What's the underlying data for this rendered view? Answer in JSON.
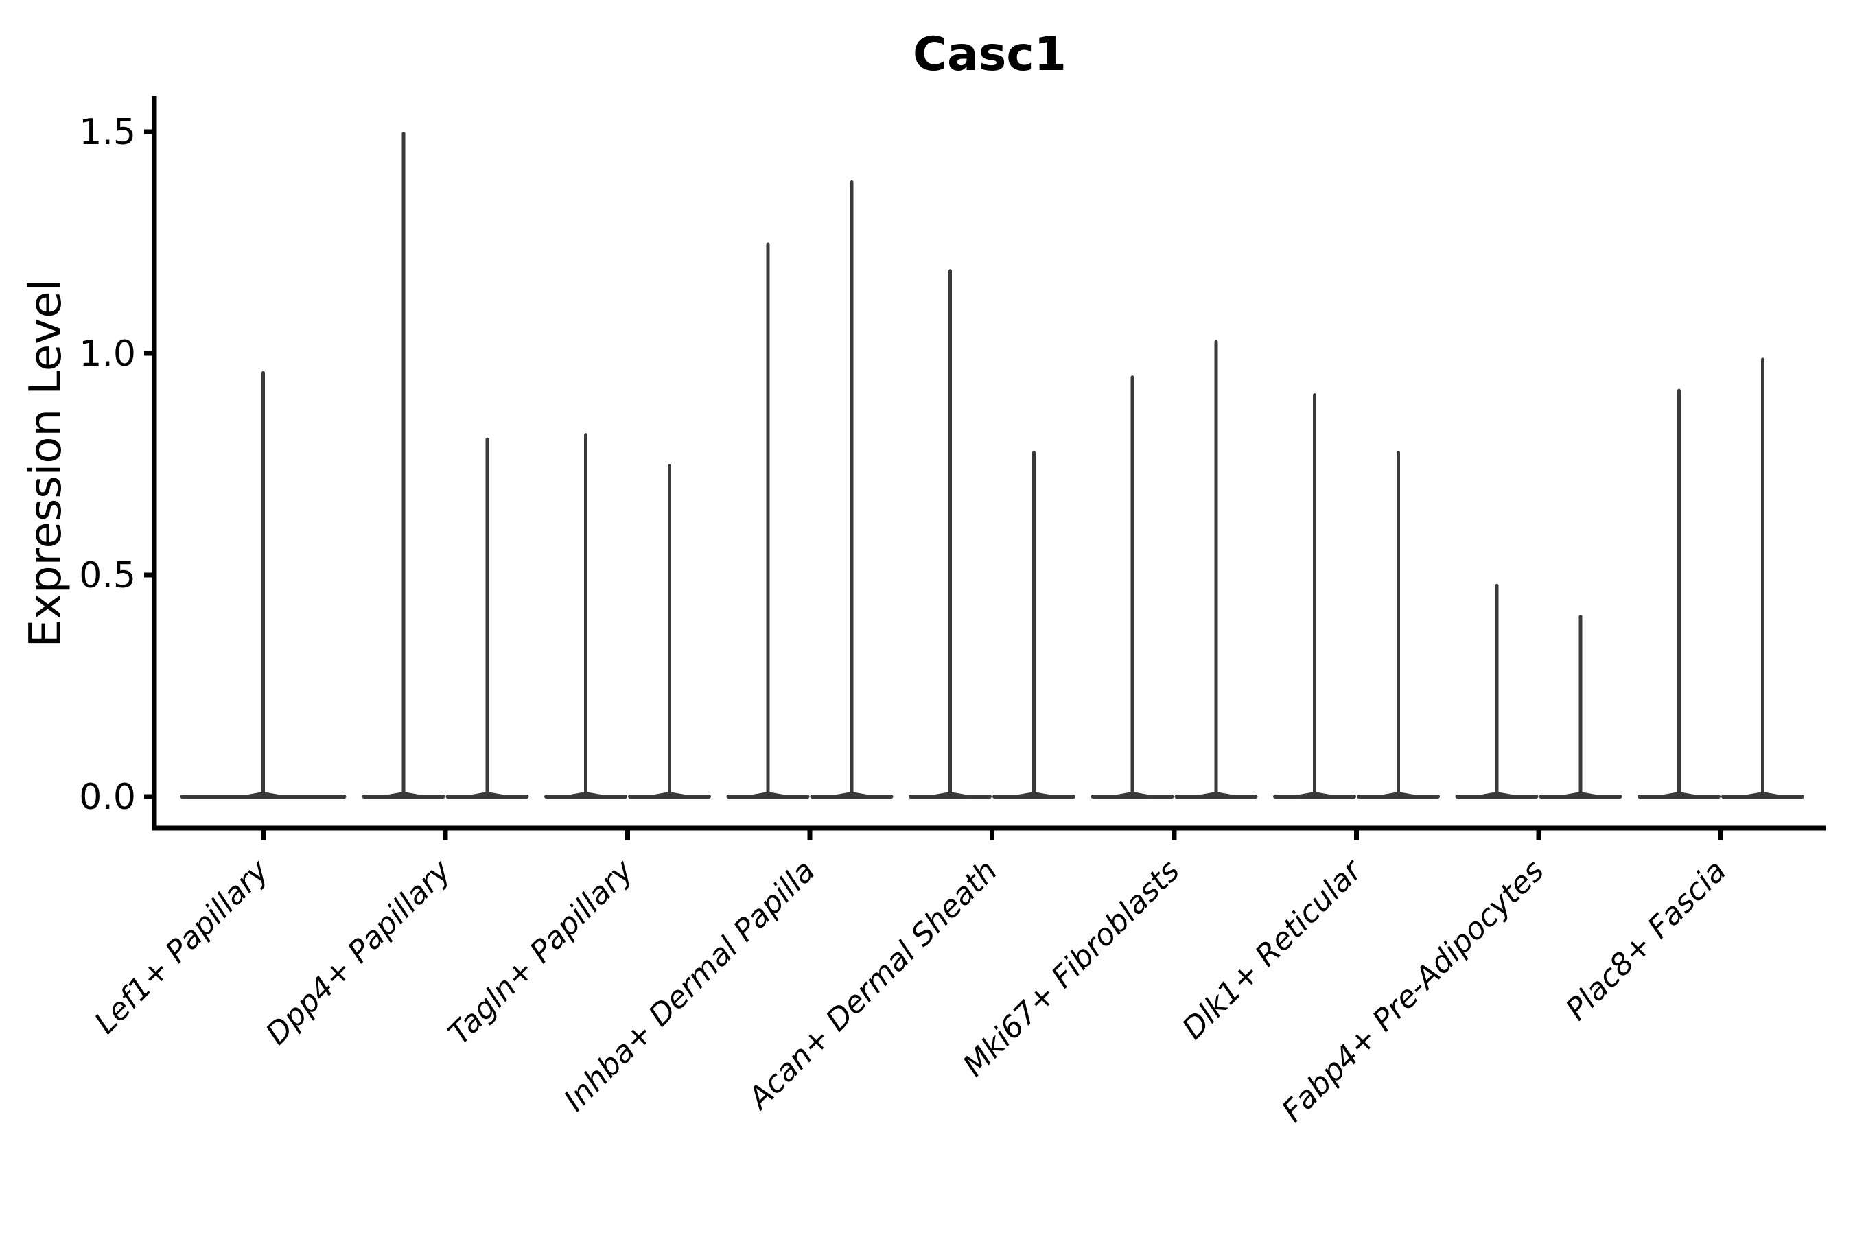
{
  "figure": {
    "background_color": "#ffffff",
    "axis_color": "#000000",
    "violin_color": "#3a3a3a"
  },
  "chart_data": {
    "type": "violin",
    "title": "Casc1",
    "xlabel": "",
    "ylabel": "Expression Level",
    "ylim": [
      0,
      1.55
    ],
    "yticks": [
      0.0,
      0.5,
      1.0,
      1.5
    ],
    "ytick_labels": [
      "0.0",
      "0.5",
      "1.0",
      "1.5"
    ],
    "grid": false,
    "legend_position": "none",
    "description": "Seurat-style violin plot; every distribution is concentrated at 0 with a thin vertical tail rising to its maximum. Categories 2-9 each contain two violins side by side; category 1 has a single centered violin.",
    "violin_min": 0,
    "categories": [
      {
        "label": "Lef1+ Papillary",
        "violin_maxima": [
          0.96
        ]
      },
      {
        "label": "Dpp4+ Papillary",
        "violin_maxima": [
          1.5,
          0.81
        ]
      },
      {
        "label": "Tagln+ Papillary",
        "violin_maxima": [
          0.82,
          0.75
        ]
      },
      {
        "label": "Inhba+ Dermal Papilla",
        "violin_maxima": [
          1.25,
          1.39
        ]
      },
      {
        "label": "Acan+ Dermal Sheath",
        "violin_maxima": [
          1.19,
          0.78
        ]
      },
      {
        "label": "Mki67+ Fibroblasts",
        "violin_maxima": [
          0.95,
          1.03
        ]
      },
      {
        "label": "Dlk1+ Reticular",
        "violin_maxima": [
          0.91,
          0.78
        ]
      },
      {
        "label": "Fabp4+ Pre-Adipocytes",
        "violin_maxima": [
          0.48,
          0.41
        ]
      },
      {
        "label": "Plac8+ Fascia",
        "violin_maxima": [
          0.92,
          0.99
        ]
      }
    ]
  }
}
